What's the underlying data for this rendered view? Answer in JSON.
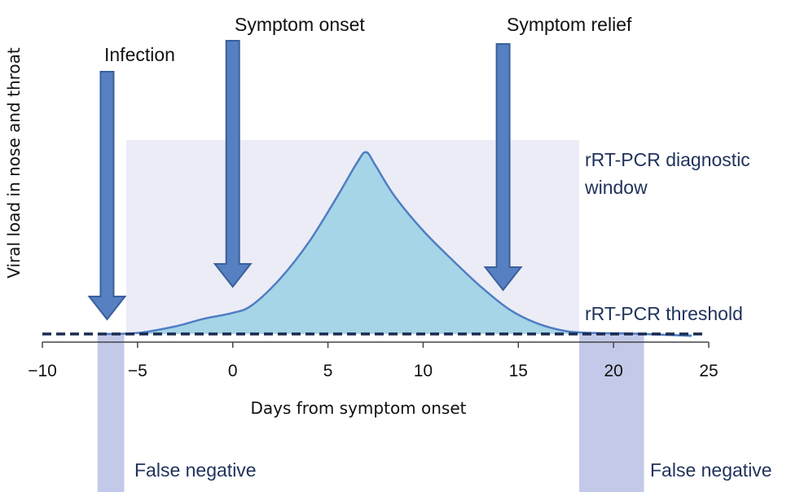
{
  "chart_data": {
    "type": "area",
    "title": "",
    "xlabel": "Days from symptom onset",
    "ylabel": "Viral load in nose and throat",
    "xlim": [
      -10,
      25
    ],
    "ylim": [
      0,
      10
    ],
    "xticks": [
      -10,
      -5,
      0,
      5,
      10,
      15,
      20,
      25
    ],
    "xtick_labels": [
      "−10",
      "−5",
      "0",
      "5",
      "10",
      "15",
      "20",
      "25"
    ],
    "yticks_shown": false,
    "series": [
      {
        "name": "Viral load",
        "x": [
          -6.9,
          -5,
          -3,
          -1.5,
          0,
          1,
          2.5,
          4,
          5.5,
          6.5,
          7,
          7.5,
          8.5,
          10,
          11.5,
          13,
          14.5,
          16,
          17.5,
          19,
          21,
          24.1
        ],
        "y": [
          0,
          0.05,
          0.4,
          0.8,
          1.1,
          1.5,
          2.9,
          4.8,
          7.2,
          8.9,
          9.5,
          8.8,
          7.2,
          5.4,
          3.9,
          2.5,
          1.3,
          0.55,
          0.15,
          0.05,
          0.02,
          -0.1
        ],
        "fill_color": "#a6d5e8",
        "line_color": "#4f7ec3"
      }
    ],
    "events": [
      {
        "label": "Infection",
        "x": -6.6
      },
      {
        "label": "Symptom onset",
        "x": 0
      },
      {
        "label": "Symptom relief",
        "x": 14.2
      }
    ],
    "threshold": {
      "label": "rRT-PCR threshold",
      "y": 0.1
    },
    "diagnostic_window": {
      "label_lines": [
        "rRT-PCR diagnostic",
        "window"
      ],
      "x_start": -5.6,
      "x_end": 18.2,
      "y_top": 10
    },
    "false_negative_regions": [
      {
        "label": "False negative",
        "x_start": -7.1,
        "x_end": -5.7
      },
      {
        "label": "False negative",
        "x_start": 18.2,
        "x_end": 21.6
      }
    ],
    "colors": {
      "window_fill": "#ececf7",
      "false_negative_fill": "#c3c9e8",
      "arrow_fill": "#5680c1",
      "arrow_stroke": "#39609c",
      "threshold_line": "#1b2a4e",
      "annotation_text": "#21335c",
      "axis": "#444444"
    }
  }
}
